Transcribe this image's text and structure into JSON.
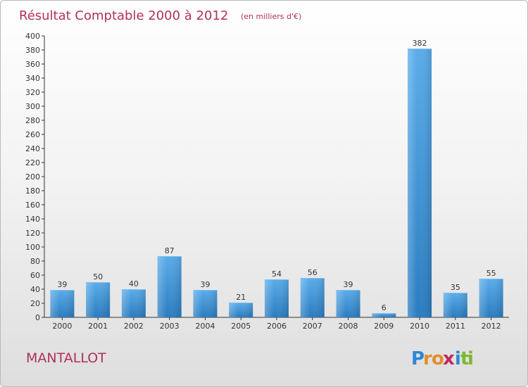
{
  "header": {
    "title": "Résultat Comptable 2000 à 2012",
    "subtitle": "(en milliers d'€)"
  },
  "footer": {
    "place": "MANTALLOT",
    "logo": {
      "letters": [
        "P",
        "r",
        "o",
        "x",
        "i",
        "t",
        "i"
      ]
    }
  },
  "colors": {
    "title": "#b0305a",
    "bar_top": "#5aacea",
    "bar_bottom": "#2a7cc0",
    "logo": [
      "#2f86d6",
      "#e0902a",
      "#e0902a",
      "#c0285a",
      "#2f86d6",
      "#7cb82f",
      "#7cb82f"
    ]
  },
  "chart_data": {
    "type": "bar",
    "title": "Résultat Comptable 2000 à 2012",
    "subtitle": "(en milliers d'€)",
    "xlabel": "",
    "ylabel": "",
    "categories": [
      "2000",
      "2001",
      "2002",
      "2003",
      "2004",
      "2005",
      "2006",
      "2007",
      "2008",
      "2009",
      "2010",
      "2011",
      "2012"
    ],
    "values": [
      39,
      50,
      40,
      87,
      39,
      21,
      54,
      56,
      39,
      6,
      382,
      35,
      55
    ],
    "ylim": [
      0,
      400
    ],
    "ytick_step": 20,
    "grid": false,
    "legend": "none"
  }
}
